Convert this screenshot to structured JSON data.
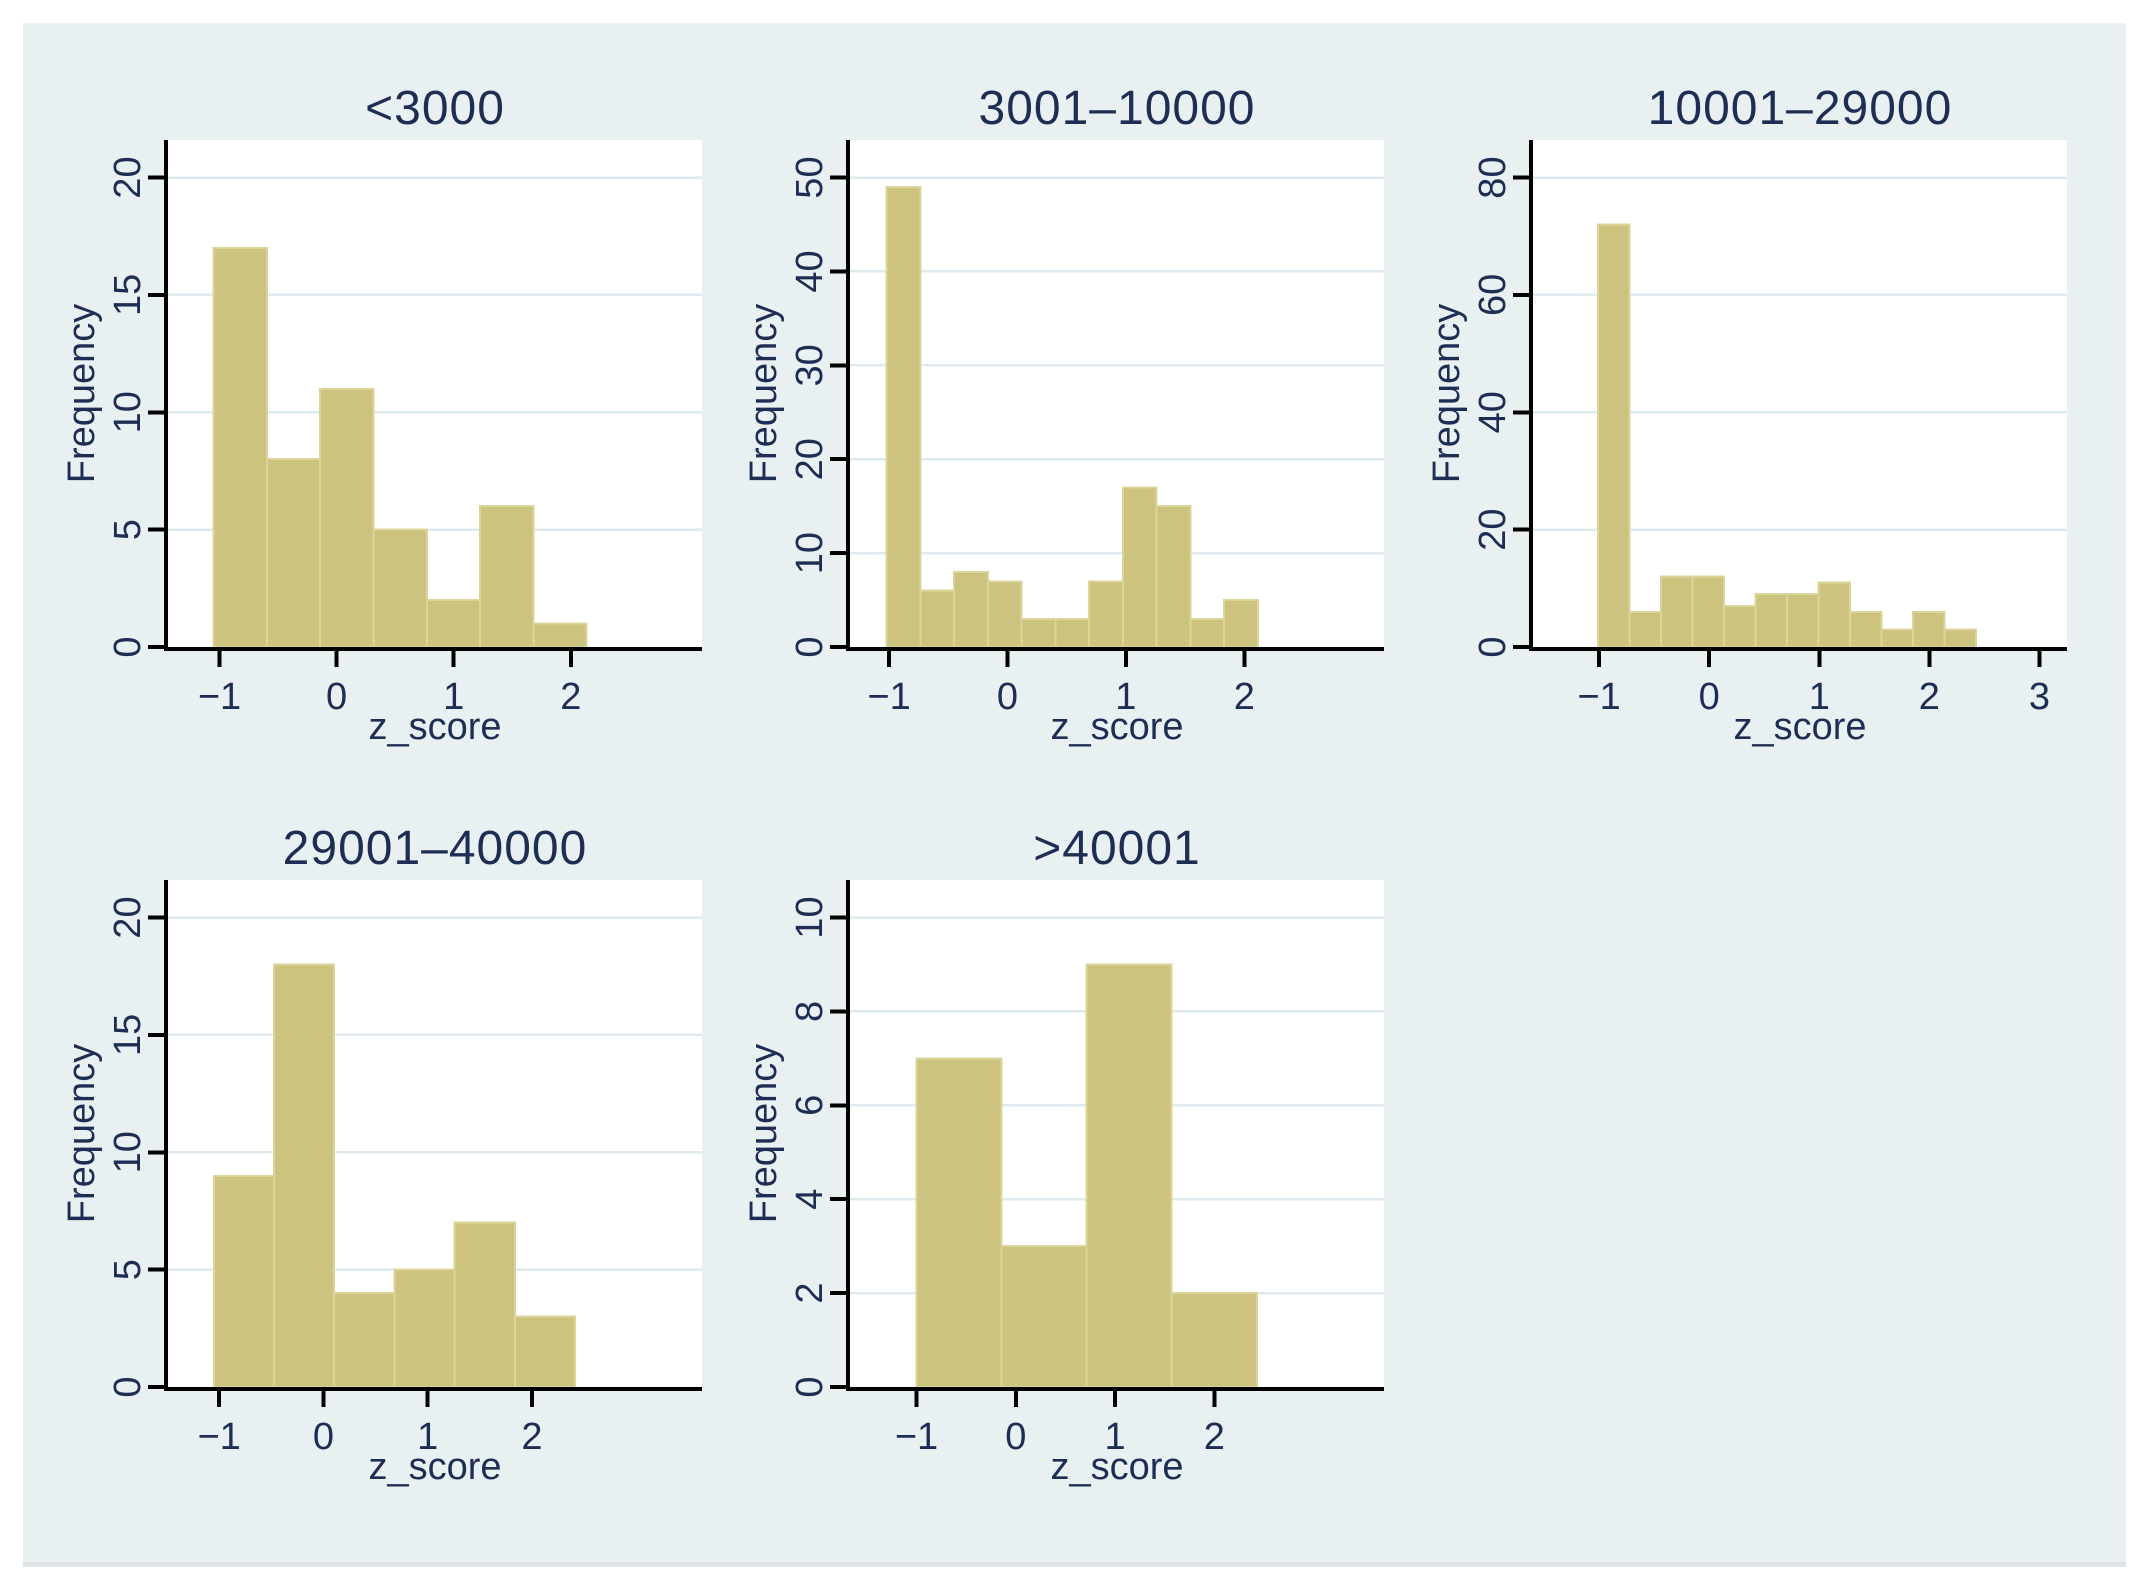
{
  "canvas": {
    "background": "#e9f0f2",
    "plot_background": "#ffffff",
    "bar_fill": "#cbc37e",
    "bar_stroke": "#dbd59c",
    "grid_color": "#dfeaee",
    "axis_color": "#000000",
    "text_color": "#1e2d53",
    "edge_color": "#dfe3e6"
  },
  "chart_data": [
    {
      "type": "bar",
      "title": "<3000",
      "xlabel": "z_score",
      "ylabel": "Frequency",
      "bin_start": -1.05,
      "bin_width": 0.455,
      "values": [
        17,
        8,
        11,
        5,
        2,
        6,
        1
      ],
      "xticks": [
        -1,
        0,
        1,
        2
      ],
      "yticks": [
        0,
        5,
        10,
        15,
        20
      ],
      "xlim": [
        -1.44,
        3.12
      ],
      "ylim": [
        0,
        21.6
      ],
      "grid": "horizontal"
    },
    {
      "type": "bar",
      "title": "3001–10000",
      "xlabel": "z_score",
      "ylabel": "Frequency",
      "bin_start": -1.02,
      "bin_width": 0.285,
      "values": [
        49,
        6,
        8,
        7,
        3,
        3,
        7,
        17,
        15,
        3,
        5
      ],
      "xticks": [
        -1,
        0,
        1,
        2
      ],
      "yticks": [
        0,
        10,
        20,
        30,
        40,
        50
      ],
      "xlim": [
        -1.33,
        3.18
      ],
      "ylim": [
        0,
        54
      ],
      "grid": "horizontal"
    },
    {
      "type": "bar",
      "title": "10001–29000",
      "xlabel": "z_score",
      "ylabel": "Frequency",
      "bin_start": -1.01,
      "bin_width": 0.286,
      "values": [
        72,
        6,
        12,
        12,
        7,
        9,
        9,
        11,
        6,
        3,
        6,
        3
      ],
      "xticks": [
        -1,
        0,
        1,
        2,
        3
      ],
      "yticks": [
        0,
        20,
        40,
        60,
        80
      ],
      "xlim": [
        -1.6,
        3.25
      ],
      "ylim": [
        0,
        86.4
      ],
      "grid": "horizontal"
    },
    {
      "type": "bar",
      "title": "29001–40000",
      "xlabel": "z_score",
      "ylabel": "Frequency",
      "bin_start": -1.05,
      "bin_width": 0.577,
      "values": [
        9,
        18,
        4,
        5,
        7,
        3
      ],
      "xticks": [
        -1,
        0,
        1,
        2
      ],
      "yticks": [
        0,
        5,
        10,
        15,
        20
      ],
      "xlim": [
        -1.49,
        3.63
      ],
      "ylim": [
        0,
        21.6
      ],
      "grid": "horizontal"
    },
    {
      "type": "bar",
      "title": ">40001",
      "xlabel": "z_score",
      "ylabel": "Frequency",
      "bin_start": -1.0,
      "bin_width": 0.857,
      "values": [
        7,
        3,
        9,
        2
      ],
      "xticks": [
        -1,
        0,
        1,
        2
      ],
      "yticks": [
        0,
        2,
        4,
        6,
        8,
        10
      ],
      "xlim": [
        -1.67,
        3.71
      ],
      "ylim": [
        0,
        10.8
      ],
      "grid": "horizontal"
    }
  ]
}
